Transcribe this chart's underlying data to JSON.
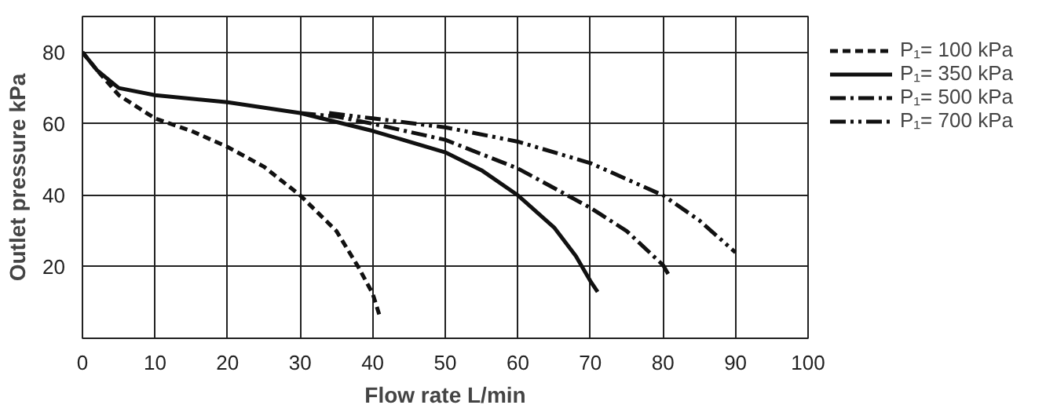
{
  "chart_data": {
    "type": "line",
    "xlabel": "Flow rate L/min",
    "ylabel": "Outlet pressure kPa",
    "xlim": [
      0,
      100
    ],
    "ylim": [
      0,
      90
    ],
    "xticks": [
      0,
      10,
      20,
      30,
      40,
      50,
      60,
      70,
      80,
      90,
      100
    ],
    "yticks": [
      20,
      40,
      60,
      80
    ],
    "grid": true,
    "legend": "right",
    "marker": "none",
    "series": [
      {
        "name": "P₁= 100 kPa",
        "color": "#111111",
        "line_style": "dashed",
        "x": [
          0,
          2,
          5,
          10,
          15,
          20,
          25,
          30,
          35,
          38,
          40,
          41
        ],
        "values": [
          80,
          75,
          68,
          61.5,
          58,
          53.5,
          48,
          40,
          30,
          20,
          12.5,
          6
        ]
      },
      {
        "name": "P₁= 350 kPa",
        "color": "#111111",
        "line_style": "solid",
        "x": [
          0,
          2,
          5,
          10,
          20,
          30,
          40,
          50,
          55,
          60,
          65,
          68,
          70,
          71
        ],
        "values": [
          80,
          75,
          70,
          68,
          66,
          63,
          58,
          52,
          47,
          40,
          31,
          23,
          16,
          13
        ]
      },
      {
        "name": "P₁= 500 kPa",
        "color": "#111111",
        "line_style": "dashdot",
        "x": [
          30,
          35,
          40,
          50,
          60,
          70,
          75,
          80,
          81
        ],
        "values": [
          63,
          62,
          60,
          55.5,
          47.5,
          36.5,
          30,
          20.5,
          17
        ]
      },
      {
        "name": "P₁= 700 kPa",
        "color": "#111111",
        "line_style": "dashdotdot",
        "x": [
          34,
          40,
          50,
          60,
          70,
          80,
          85,
          90
        ],
        "values": [
          63,
          61.5,
          59,
          55,
          49,
          40,
          33,
          24
        ]
      }
    ]
  }
}
